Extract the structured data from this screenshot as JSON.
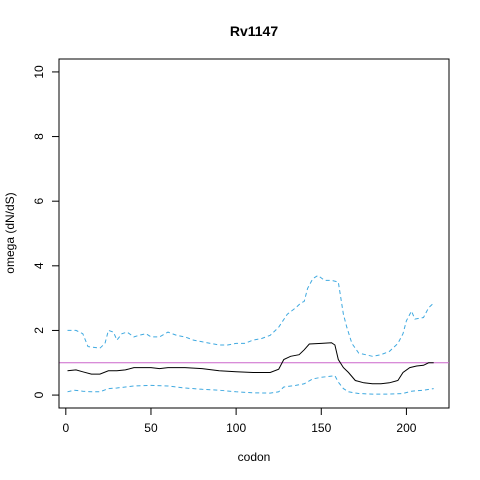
{
  "chart_data": {
    "type": "line",
    "title": "Rv1147",
    "xlabel": "codon",
    "ylabel": "omega (dN/dS)",
    "xlim": [
      -4,
      225
    ],
    "ylim": [
      -0.4,
      10.4
    ],
    "x_ticks": [
      0,
      50,
      100,
      150,
      200
    ],
    "x_tick_labels": [
      "0",
      "50",
      "100",
      "150",
      "200"
    ],
    "y_ticks": [
      0,
      2,
      4,
      6,
      8,
      10
    ],
    "y_tick_labels": [
      "0",
      "2",
      "4",
      "6",
      "8",
      "10"
    ],
    "grid": false,
    "reference_line": {
      "y": 1,
      "color": "#cc66cc"
    },
    "series": [
      {
        "role": "upper",
        "style": "dashed",
        "color": "#3fa9e0",
        "points": [
          [
            1,
            2.0
          ],
          [
            6,
            2.0
          ],
          [
            10,
            1.9
          ],
          [
            13,
            1.5
          ],
          [
            20,
            1.45
          ],
          [
            23,
            1.6
          ],
          [
            25,
            2.0
          ],
          [
            28,
            1.95
          ],
          [
            30,
            1.7
          ],
          [
            33,
            1.9
          ],
          [
            36,
            1.95
          ],
          [
            40,
            1.8
          ],
          [
            43,
            1.85
          ],
          [
            47,
            1.9
          ],
          [
            50,
            1.8
          ],
          [
            55,
            1.8
          ],
          [
            60,
            1.95
          ],
          [
            65,
            1.85
          ],
          [
            70,
            1.8
          ],
          [
            75,
            1.7
          ],
          [
            80,
            1.65
          ],
          [
            85,
            1.6
          ],
          [
            90,
            1.55
          ],
          [
            95,
            1.55
          ],
          [
            100,
            1.6
          ],
          [
            105,
            1.6
          ],
          [
            110,
            1.7
          ],
          [
            115,
            1.75
          ],
          [
            120,
            1.85
          ],
          [
            125,
            2.1
          ],
          [
            130,
            2.5
          ],
          [
            135,
            2.7
          ],
          [
            138,
            2.85
          ],
          [
            140,
            2.9
          ],
          [
            142,
            3.3
          ],
          [
            145,
            3.6
          ],
          [
            148,
            3.7
          ],
          [
            152,
            3.55
          ],
          [
            156,
            3.55
          ],
          [
            160,
            3.5
          ],
          [
            163,
            2.5
          ],
          [
            165,
            2.1
          ],
          [
            168,
            1.6
          ],
          [
            172,
            1.3
          ],
          [
            176,
            1.25
          ],
          [
            180,
            1.2
          ],
          [
            185,
            1.25
          ],
          [
            190,
            1.35
          ],
          [
            195,
            1.6
          ],
          [
            198,
            1.9
          ],
          [
            200,
            2.3
          ],
          [
            203,
            2.6
          ],
          [
            205,
            2.35
          ],
          [
            210,
            2.4
          ],
          [
            213,
            2.7
          ],
          [
            216,
            2.85
          ]
        ]
      },
      {
        "role": "estimate",
        "style": "solid",
        "color": "#000000",
        "points": [
          [
            1,
            0.75
          ],
          [
            6,
            0.78
          ],
          [
            10,
            0.72
          ],
          [
            15,
            0.65
          ],
          [
            20,
            0.65
          ],
          [
            25,
            0.75
          ],
          [
            30,
            0.75
          ],
          [
            35,
            0.78
          ],
          [
            40,
            0.85
          ],
          [
            45,
            0.85
          ],
          [
            50,
            0.85
          ],
          [
            55,
            0.82
          ],
          [
            60,
            0.85
          ],
          [
            70,
            0.85
          ],
          [
            80,
            0.82
          ],
          [
            90,
            0.75
          ],
          [
            100,
            0.72
          ],
          [
            110,
            0.7
          ],
          [
            120,
            0.7
          ],
          [
            125,
            0.8
          ],
          [
            128,
            1.1
          ],
          [
            132,
            1.2
          ],
          [
            137,
            1.25
          ],
          [
            140,
            1.4
          ],
          [
            143,
            1.58
          ],
          [
            150,
            1.6
          ],
          [
            156,
            1.62
          ],
          [
            158,
            1.55
          ],
          [
            160,
            1.1
          ],
          [
            163,
            0.85
          ],
          [
            166,
            0.7
          ],
          [
            170,
            0.45
          ],
          [
            175,
            0.38
          ],
          [
            180,
            0.35
          ],
          [
            185,
            0.35
          ],
          [
            190,
            0.38
          ],
          [
            195,
            0.45
          ],
          [
            198,
            0.7
          ],
          [
            202,
            0.85
          ],
          [
            206,
            0.9
          ],
          [
            210,
            0.92
          ],
          [
            213,
            1.0
          ],
          [
            216,
            1.0
          ]
        ]
      },
      {
        "role": "lower",
        "style": "dashed",
        "color": "#3fa9e0",
        "points": [
          [
            1,
            0.1
          ],
          [
            5,
            0.15
          ],
          [
            10,
            0.12
          ],
          [
            15,
            0.1
          ],
          [
            20,
            0.1
          ],
          [
            25,
            0.2
          ],
          [
            30,
            0.22
          ],
          [
            35,
            0.25
          ],
          [
            40,
            0.28
          ],
          [
            50,
            0.3
          ],
          [
            60,
            0.28
          ],
          [
            70,
            0.22
          ],
          [
            80,
            0.18
          ],
          [
            90,
            0.15
          ],
          [
            100,
            0.1
          ],
          [
            110,
            0.07
          ],
          [
            120,
            0.06
          ],
          [
            125,
            0.1
          ],
          [
            128,
            0.25
          ],
          [
            135,
            0.3
          ],
          [
            140,
            0.35
          ],
          [
            145,
            0.5
          ],
          [
            150,
            0.55
          ],
          [
            158,
            0.6
          ],
          [
            160,
            0.4
          ],
          [
            163,
            0.2
          ],
          [
            166,
            0.1
          ],
          [
            172,
            0.05
          ],
          [
            180,
            0.03
          ],
          [
            190,
            0.03
          ],
          [
            198,
            0.05
          ],
          [
            203,
            0.12
          ],
          [
            210,
            0.15
          ],
          [
            216,
            0.2
          ]
        ]
      }
    ]
  }
}
